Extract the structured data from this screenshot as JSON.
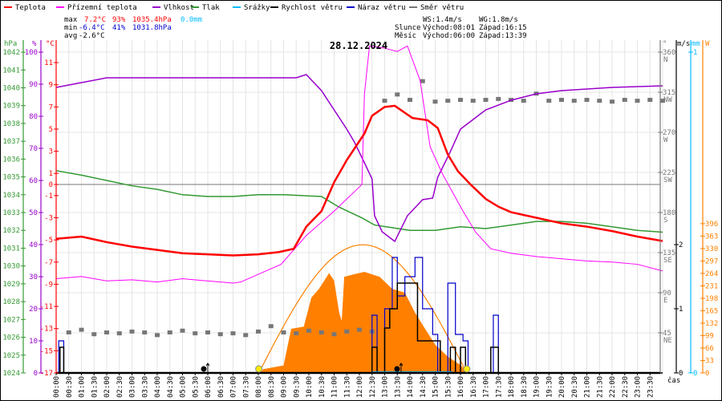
{
  "title": "28.12.2024",
  "legend": [
    {
      "label": "Teplota",
      "color": "#ff0000"
    },
    {
      "label": "Přízemní teplota",
      "color": "#ff00ff"
    },
    {
      "label": "Vlhkost",
      "color": "#9900cc"
    },
    {
      "label": "Tlak",
      "color": "#339933"
    },
    {
      "label": "Srážky",
      "color": "#00bbff"
    },
    {
      "label": "Rychlost větru",
      "color": "#000000"
    },
    {
      "label": "Náraz větru",
      "color": "#0000cc"
    },
    {
      "label": "Směr větru",
      "color": "#777777"
    }
  ],
  "stats": {
    "max_label": "max",
    "max_temp": "7.2°C",
    "max_hum": "93%",
    "max_press": "1035.4hPa",
    "max_rain": "0.0mm",
    "min_label": "min",
    "min_temp": "-6.4°C",
    "min_hum": "41%",
    "min_press": "1031.8hPa",
    "avg_label": "avg",
    "avg_temp": "-2.6°C",
    "ws": "WS:1.4m/s",
    "wg": "WG:1.8m/s",
    "sun_label": "Slunce",
    "sun_rise": "Východ:08:01",
    "sun_set": "Západ:16:15",
    "moon_label": "Měsíc",
    "moon_rise": "Východ:06:00",
    "moon_set": "Západ:13:39"
  },
  "colors": {
    "temp": "#ff0000",
    "feels": "#ff00ff",
    "hum": "#9900cc",
    "press": "#339933",
    "rain": "#00bbff",
    "speed": "#000000",
    "gust": "#0000cc",
    "dir": "#777777",
    "solar": "#ff8000",
    "grid": "#e4e4e4"
  },
  "chart_data": {
    "type": "line",
    "title": "28.12.2024",
    "xlabel": "čas",
    "x_range_hours": [
      0,
      24
    ],
    "x_tick_labels": [
      "00:00",
      "00:30",
      "01:00",
      "01:30",
      "02:00",
      "02:30",
      "03:00",
      "03:30",
      "04:00",
      "04:30",
      "05:00",
      "05:30",
      "06:00",
      "06:30",
      "07:00",
      "07:30",
      "08:00",
      "08:30",
      "09:00",
      "09:30",
      "10:00",
      "10:30",
      "11:00",
      "11:30",
      "12:00",
      "12:30",
      "13:00",
      "13:30",
      "14:00",
      "14:30",
      "15:00",
      "15:30",
      "16:00",
      "16:30",
      "17:00",
      "17:30",
      "18:00",
      "18:30",
      "19:00",
      "19:30",
      "20:00",
      "20:30",
      "21:00",
      "21:30",
      "22:00",
      "22:30",
      "23:00",
      "23:30"
    ],
    "axes": {
      "pressure": {
        "unit": "hPa",
        "range": [
          1024,
          1042
        ],
        "ticks": [
          1024,
          1025,
          1026,
          1027,
          1028,
          1029,
          1030,
          1031,
          1032,
          1033,
          1034,
          1035,
          1036,
          1037,
          1038,
          1039,
          1040,
          1041,
          1042
        ]
      },
      "humidity": {
        "unit": "%",
        "range": [
          0,
          100
        ],
        "ticks": [
          0,
          10,
          20,
          30,
          40,
          50,
          60,
          70,
          80,
          90,
          100
        ]
      },
      "temperature": {
        "unit": "°C",
        "range": [
          -17,
          12
        ],
        "ticks": [
          -17,
          -15,
          -13,
          -11,
          -9,
          -7,
          -5,
          -3,
          -1,
          0,
          1,
          3,
          5,
          7,
          9,
          11
        ]
      },
      "wind_dir": {
        "unit": "°",
        "range": [
          0,
          360
        ],
        "ticks": [
          {
            "v": 45,
            "l": "45",
            "d": "NE"
          },
          {
            "v": 90,
            "l": "90",
            "d": "E"
          },
          {
            "v": 135,
            "l": "135",
            "d": "SE"
          },
          {
            "v": 180,
            "l": "180",
            "d": "S"
          },
          {
            "v": 225,
            "l": "225",
            "d": "SW"
          },
          {
            "v": 270,
            "l": "270",
            "d": "W"
          },
          {
            "v": 315,
            "l": "315",
            "d": "NW"
          },
          {
            "v": 360,
            "l": "360",
            "d": "N"
          }
        ]
      },
      "wind_speed": {
        "unit": "m/s",
        "range": [
          0,
          5
        ],
        "ticks": [
          0,
          1,
          2
        ]
      },
      "rain": {
        "unit": "mm",
        "range": [
          0,
          1
        ],
        "ticks": [
          0,
          1
        ]
      },
      "solar": {
        "unit": "W",
        "range": [
          0,
          850
        ],
        "ticks": [
          0,
          33,
          66,
          99,
          132,
          165,
          198,
          231,
          264,
          297,
          330,
          363,
          396
        ]
      }
    },
    "series": [
      {
        "name": "Teplota",
        "unit": "°C",
        "points": [
          [
            0,
            -4.9
          ],
          [
            1,
            -4.7
          ],
          [
            2,
            -5.2
          ],
          [
            3,
            -5.6
          ],
          [
            4,
            -5.9
          ],
          [
            5,
            -6.2
          ],
          [
            6,
            -6.3
          ],
          [
            7,
            -6.4
          ],
          [
            8,
            -6.3
          ],
          [
            8.8,
            -6.1
          ],
          [
            9.4,
            -5.8
          ],
          [
            9.9,
            -3.8
          ],
          [
            10.5,
            -2.4
          ],
          [
            11,
            0.2
          ],
          [
            11.5,
            2.2
          ],
          [
            12.2,
            4.6
          ],
          [
            12.5,
            6.2
          ],
          [
            13,
            7.0
          ],
          [
            13.4,
            7.1
          ],
          [
            14.1,
            6.0
          ],
          [
            14.7,
            5.8
          ],
          [
            15.1,
            5.1
          ],
          [
            15.5,
            2.7
          ],
          [
            15.9,
            1.2
          ],
          [
            16.4,
            0
          ],
          [
            17,
            -1.3
          ],
          [
            17.5,
            -2.0
          ],
          [
            18,
            -2.5
          ],
          [
            19,
            -3.0
          ],
          [
            20,
            -3.5
          ],
          [
            21,
            -3.8
          ],
          [
            22,
            -4.2
          ],
          [
            23,
            -4.7
          ],
          [
            24,
            -5.1
          ]
        ]
      },
      {
        "name": "Přízemní teplota",
        "unit": "°C",
        "points": [
          [
            0,
            -8.5
          ],
          [
            1,
            -8.3
          ],
          [
            2,
            -8.7
          ],
          [
            3,
            -8.6
          ],
          [
            4,
            -8.8
          ],
          [
            5,
            -8.5
          ],
          [
            6,
            -8.7
          ],
          [
            7,
            -8.9
          ],
          [
            7.3,
            -8.8
          ],
          [
            8.9,
            -7.2
          ],
          [
            9.9,
            -4.6
          ],
          [
            11,
            -2.4
          ],
          [
            12.1,
            0
          ],
          [
            12.2,
            8.2
          ],
          [
            12.4,
            12.5
          ],
          [
            13,
            12.3
          ],
          [
            13.5,
            12.0
          ],
          [
            13.9,
            12.5
          ],
          [
            14.4,
            9.4
          ],
          [
            14.8,
            3.4
          ],
          [
            15.3,
            0.9
          ],
          [
            16.1,
            -2.4
          ],
          [
            16.6,
            -4.3
          ],
          [
            17.2,
            -5.8
          ],
          [
            18,
            -6.2
          ],
          [
            19,
            -6.5
          ],
          [
            20,
            -6.7
          ],
          [
            21,
            -6.9
          ],
          [
            22,
            -7.0
          ],
          [
            23,
            -7.2
          ],
          [
            24,
            -7.8
          ]
        ]
      },
      {
        "name": "Vlhkost",
        "unit": "%",
        "points": [
          [
            0,
            89
          ],
          [
            1,
            90.5
          ],
          [
            2,
            92
          ],
          [
            4,
            92
          ],
          [
            6,
            92
          ],
          [
            8,
            92
          ],
          [
            9.5,
            92
          ],
          [
            9.9,
            93
          ],
          [
            10.5,
            88
          ],
          [
            11,
            82
          ],
          [
            11.5,
            76
          ],
          [
            11.8,
            72
          ],
          [
            12.2,
            65.5
          ],
          [
            12.5,
            60.5
          ],
          [
            12.6,
            49
          ],
          [
            12.9,
            44
          ],
          [
            13.4,
            41
          ],
          [
            13.9,
            49
          ],
          [
            14.5,
            54
          ],
          [
            14.9,
            54.5
          ],
          [
            15.1,
            61
          ],
          [
            15.6,
            69
          ],
          [
            16,
            76
          ],
          [
            16.5,
            79
          ],
          [
            17,
            82
          ],
          [
            18,
            85
          ],
          [
            19,
            87
          ],
          [
            20,
            88
          ],
          [
            22,
            89
          ],
          [
            24,
            89.5
          ]
        ]
      },
      {
        "name": "Tlak",
        "unit": "hPa",
        "points": [
          [
            0,
            1035.35
          ],
          [
            1,
            1035.1
          ],
          [
            2,
            1034.8
          ],
          [
            3,
            1034.5
          ],
          [
            4,
            1034.3
          ],
          [
            5,
            1034.0
          ],
          [
            6,
            1033.9
          ],
          [
            7,
            1033.9
          ],
          [
            8,
            1034.0
          ],
          [
            9,
            1034.0
          ],
          [
            10.5,
            1033.9
          ],
          [
            11.2,
            1033.3
          ],
          [
            12.1,
            1032.7
          ],
          [
            12.6,
            1032.3
          ],
          [
            14,
            1032.0
          ],
          [
            15,
            1032.0
          ],
          [
            16,
            1032.2
          ],
          [
            17,
            1032.1
          ],
          [
            18,
            1032.3
          ],
          [
            19,
            1032.5
          ],
          [
            20,
            1032.5
          ],
          [
            21,
            1032.4
          ],
          [
            22,
            1032.2
          ],
          [
            23,
            1032.0
          ],
          [
            24,
            1031.9
          ]
        ]
      },
      {
        "name": "Srážky",
        "unit": "mm",
        "points": [
          [
            0,
            0
          ],
          [
            24,
            0
          ]
        ]
      },
      {
        "name": "Rychlost větru",
        "unit": "m/s",
        "points": [
          [
            0,
            0
          ],
          [
            0.15,
            0.4
          ],
          [
            0.3,
            0
          ],
          [
            12.4,
            0
          ],
          [
            12.5,
            0.4
          ],
          [
            12.7,
            0
          ],
          [
            13.0,
            0.7
          ],
          [
            13.2,
            1.0
          ],
          [
            13.5,
            1.4
          ],
          [
            14.0,
            1.4
          ],
          [
            14.3,
            0.5
          ],
          [
            15.0,
            0.5
          ],
          [
            15.2,
            0
          ],
          [
            15.6,
            0.4
          ],
          [
            15.8,
            0
          ],
          [
            16.0,
            0.4
          ],
          [
            16.2,
            0
          ],
          [
            17.2,
            0.4
          ],
          [
            17.5,
            0
          ],
          [
            24,
            0
          ]
        ]
      },
      {
        "name": "Náraz větru",
        "unit": "m/s",
        "points": [
          [
            0,
            0
          ],
          [
            0.1,
            0.5
          ],
          [
            0.3,
            0
          ],
          [
            12.3,
            0
          ],
          [
            12.5,
            0.9
          ],
          [
            12.7,
            0
          ],
          [
            13.0,
            1.0
          ],
          [
            13.3,
            1.8
          ],
          [
            13.5,
            1.2
          ],
          [
            13.8,
            1.5
          ],
          [
            14.2,
            1.8
          ],
          [
            14.5,
            1.0
          ],
          [
            14.9,
            0.6
          ],
          [
            15.1,
            0
          ],
          [
            15.5,
            1.4
          ],
          [
            15.8,
            0.6
          ],
          [
            16.1,
            0.5
          ],
          [
            16.3,
            0
          ],
          [
            17.2,
            0
          ],
          [
            17.3,
            0.9
          ],
          [
            17.5,
            0
          ],
          [
            24,
            0
          ]
        ]
      },
      {
        "name": "Směr větru",
        "unit": "°",
        "points": [
          [
            0.5,
            45
          ],
          [
            1,
            48
          ],
          [
            1.5,
            43
          ],
          [
            2,
            45
          ],
          [
            2.5,
            44
          ],
          [
            3,
            46
          ],
          [
            3.5,
            45
          ],
          [
            4,
            42
          ],
          [
            4.5,
            45
          ],
          [
            5,
            47
          ],
          [
            5.5,
            44
          ],
          [
            6,
            45
          ],
          [
            6.5,
            43
          ],
          [
            7,
            44
          ],
          [
            7.5,
            42
          ],
          [
            8,
            46
          ],
          [
            8.5,
            52
          ],
          [
            9,
            45
          ],
          [
            9.5,
            44
          ],
          [
            10,
            47
          ],
          [
            10.5,
            45
          ],
          [
            11,
            43
          ],
          [
            11.5,
            46
          ],
          [
            12,
            48
          ],
          [
            12.5,
            46
          ],
          [
            13,
            305
          ],
          [
            13.5,
            312
          ],
          [
            14,
            306
          ],
          [
            14.5,
            327
          ],
          [
            15,
            304
          ],
          [
            15.5,
            305
          ],
          [
            16,
            306
          ],
          [
            16.5,
            305
          ],
          [
            17,
            306
          ],
          [
            17.5,
            307
          ],
          [
            18,
            306
          ],
          [
            18.5,
            305
          ],
          [
            19,
            313
          ],
          [
            19.5,
            305
          ],
          [
            20,
            306
          ],
          [
            20.5,
            305
          ],
          [
            21,
            306
          ],
          [
            21.5,
            305
          ],
          [
            22,
            304
          ],
          [
            22.5,
            306
          ],
          [
            23,
            305
          ],
          [
            23.5,
            306
          ],
          [
            24,
            305
          ]
        ]
      }
    ],
    "solar_measured": {
      "name": "Sluneční záření",
      "unit": "W",
      "points": [
        [
          8.05,
          0
        ],
        [
          8.2,
          10
        ],
        [
          9,
          20
        ],
        [
          9.3,
          117
        ],
        [
          9.8,
          123
        ],
        [
          10.1,
          200
        ],
        [
          10.4,
          223
        ],
        [
          10.8,
          265
        ],
        [
          11.0,
          245
        ],
        [
          11.2,
          160
        ],
        [
          11.3,
          138
        ],
        [
          11.4,
          255
        ],
        [
          11.8,
          262
        ],
        [
          12.2,
          268
        ],
        [
          12.8,
          255
        ],
        [
          13.3,
          223
        ],
        [
          13.8,
          213
        ],
        [
          14.2,
          160
        ],
        [
          14.6,
          117
        ],
        [
          15,
          75
        ],
        [
          15.5,
          43
        ],
        [
          16,
          21
        ],
        [
          16.3,
          0
        ]
      ]
    },
    "solar_theoretical": {
      "unit": "W",
      "peak": 340,
      "start_hour": 8.02,
      "end_hour": 16.25
    },
    "sun": {
      "rise_hour": 8.02,
      "set_hour": 16.25
    },
    "moon": {
      "rise_hour": 6.0,
      "set_hour": 13.65
    }
  }
}
